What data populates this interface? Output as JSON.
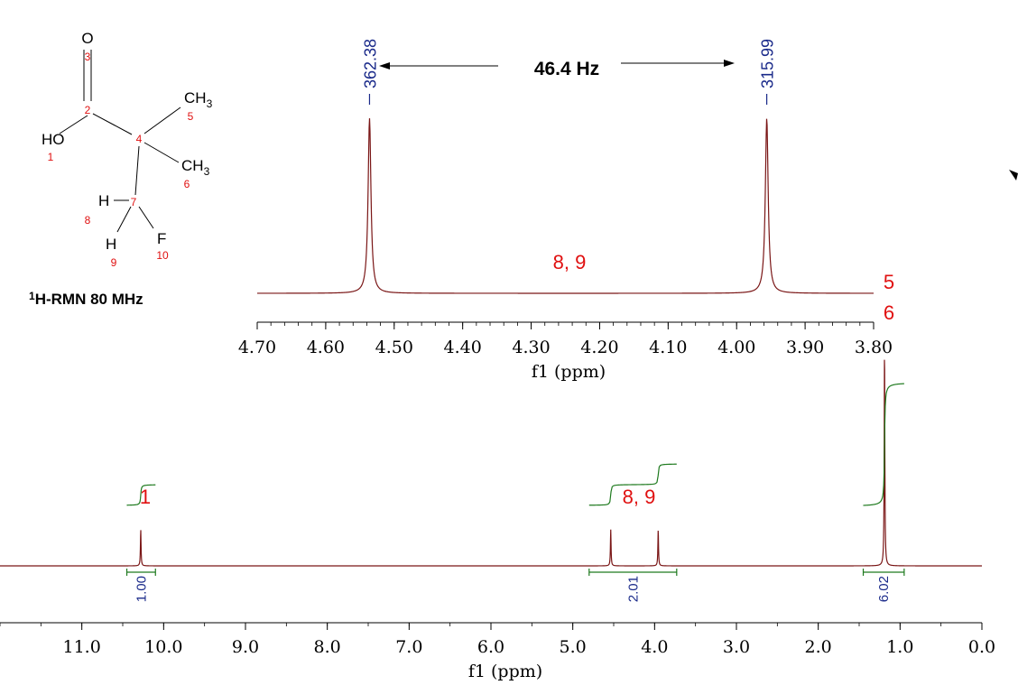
{
  "colors": {
    "spectrum": "#7a1616",
    "integral": "#1e7a1e",
    "label_red": "#e01010",
    "label_blue": "#1a2a8a",
    "axis": "#000000"
  },
  "molecule": {
    "atoms": [
      {
        "id": "O3",
        "text": "O",
        "num": "3"
      },
      {
        "id": "C2",
        "text": "",
        "num": "2"
      },
      {
        "id": "O1",
        "text": "HO",
        "num": "1"
      },
      {
        "id": "C4",
        "text": "",
        "num": "4"
      },
      {
        "id": "C5",
        "text": "CH3",
        "num": "5"
      },
      {
        "id": "C6",
        "text": "CH3",
        "num": "6"
      },
      {
        "id": "C7",
        "text": "",
        "num": "7"
      },
      {
        "id": "H8",
        "text": "H",
        "num": "8"
      },
      {
        "id": "H9",
        "text": "H",
        "num": "9"
      },
      {
        "id": "F10",
        "text": "F",
        "num": "10"
      }
    ],
    "title_sup": "1",
    "title": "H-RMN 80 MHz"
  },
  "chart_data": [
    {
      "type": "line",
      "name": "inset",
      "xlabel": "f1 (ppm)",
      "xlim": [
        4.7,
        3.8
      ],
      "x_reversed": true,
      "ticks": [
        "4.70",
        "4.60",
        "4.50",
        "4.40",
        "4.30",
        "4.20",
        "4.10",
        "4.00",
        "3.90",
        "3.80"
      ],
      "peaks": [
        {
          "ppm": 4.536,
          "height": 1.0,
          "label": "362.38"
        },
        {
          "ppm": 3.956,
          "height": 1.0,
          "label": "315.99"
        }
      ],
      "coupling_annotation": "46.4 Hz",
      "assignment_labels": [
        {
          "text": "8, 9"
        }
      ]
    },
    {
      "type": "line",
      "name": "main",
      "xlabel": "f1 (ppm)",
      "xlim": [
        12.0,
        0.0
      ],
      "x_reversed": true,
      "ticks": [
        "11.0",
        "10.0",
        "9.0",
        "8.0",
        "7.0",
        "6.0",
        "5.0",
        "4.0",
        "3.0",
        "2.0",
        "1.0",
        "0.0"
      ],
      "peaks": [
        {
          "ppm": 10.28,
          "height": 0.165
        },
        {
          "ppm": 4.536,
          "height": 0.165
        },
        {
          "ppm": 3.956,
          "height": 0.165
        },
        {
          "ppm": 1.19,
          "height": 1.0
        }
      ],
      "integrals": [
        {
          "from": 10.45,
          "to": 10.1,
          "value": "1.00"
        },
        {
          "from": 4.8,
          "to": 3.73,
          "value": "2.01"
        },
        {
          "from": 1.45,
          "to": 0.95,
          "value": "6.02"
        }
      ],
      "assignment_labels": [
        {
          "text": "1"
        },
        {
          "text": "8, 9"
        },
        {
          "text": "5"
        },
        {
          "text": "6"
        }
      ]
    }
  ]
}
